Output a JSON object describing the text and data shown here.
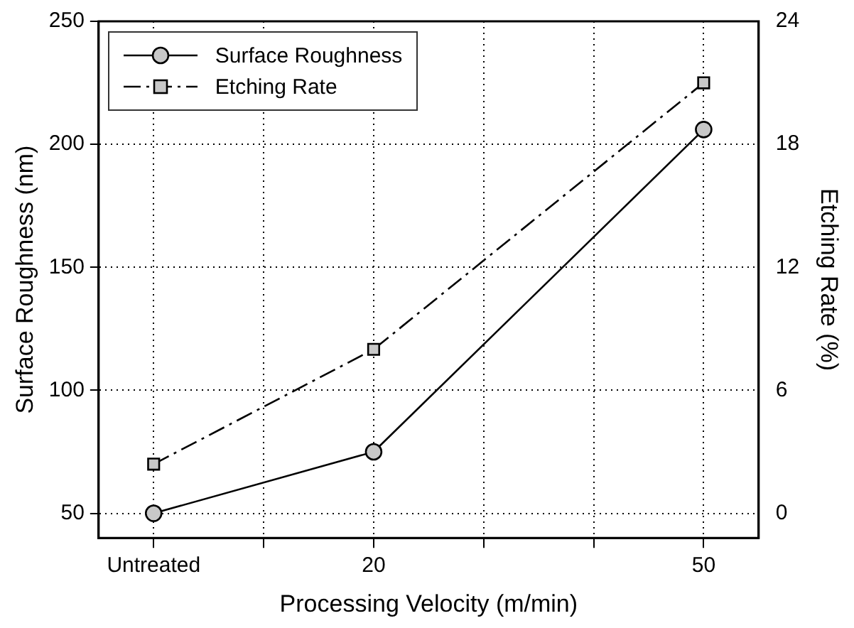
{
  "chart_data": {
    "type": "line",
    "xlabel": "Processing Velocity (m/min)",
    "ylabel": "Surface Roughness (nm)",
    "y2label": "Etching Rate (%)",
    "categories": [
      "Untreated",
      null,
      "20",
      null,
      null,
      "50"
    ],
    "series": [
      {
        "name": "Surface Roughness",
        "color": "#000000",
        "marker": "circle",
        "line_style": "solid",
        "values": [
          50,
          null,
          75,
          null,
          null,
          206
        ]
      },
      {
        "name": "Etching Rate",
        "color": "#000000",
        "marker": "square",
        "line_style": "dashed",
        "axis": "y2",
        "values": [
          2.4,
          null,
          8,
          null,
          null,
          21
        ]
      }
    ],
    "ylim": [
      40,
      250
    ],
    "yticks": [
      50,
      100,
      150,
      200,
      250
    ],
    "y2lim": [
      -1.2,
      24
    ],
    "y2ticks": [
      0,
      6,
      12,
      18,
      24
    ],
    "grid": true,
    "legend": "top left"
  }
}
